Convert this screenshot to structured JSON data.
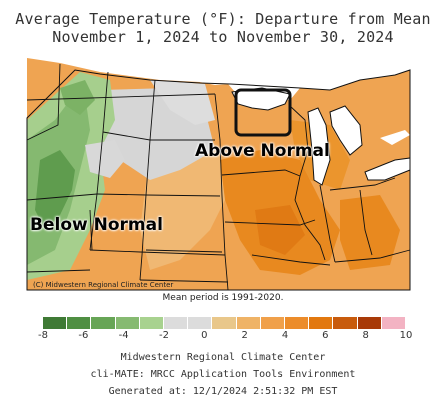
{
  "title_line1": "Average Temperature (°F): Departure from Mean",
  "title_line2": "November 1, 2024 to November 30, 2024",
  "labels": {
    "above": "Above Normal",
    "below": "Below Normal"
  },
  "credit": "(C) Midwestern Regional Climate Center",
  "mean_period": "Mean period is 1991-2020.",
  "legend": {
    "ticks": [
      "-8",
      "-6",
      "-4",
      "-2",
      "0",
      "2",
      "4",
      "6",
      "8",
      "10"
    ],
    "colors": [
      "#3f7a35",
      "#4f8f42",
      "#67a556",
      "#86ba71",
      "#a8d28f",
      "#dcdcdc",
      "#dcdcdc",
      "#e9c78a",
      "#efb366",
      "#f0a04a",
      "#ec8c2a",
      "#e2780f",
      "#c85b0c",
      "#a83a08",
      "#f3b3c3"
    ]
  },
  "footer": {
    "line1": "Midwestern Regional Climate Center",
    "line2": "cli-MATE: MRCC Application Tools Environment",
    "line3": "Generated at: 12/1/2024 2:51:32 PM EST"
  },
  "highlight_region": "Lake Superior / Upper Peninsula"
}
